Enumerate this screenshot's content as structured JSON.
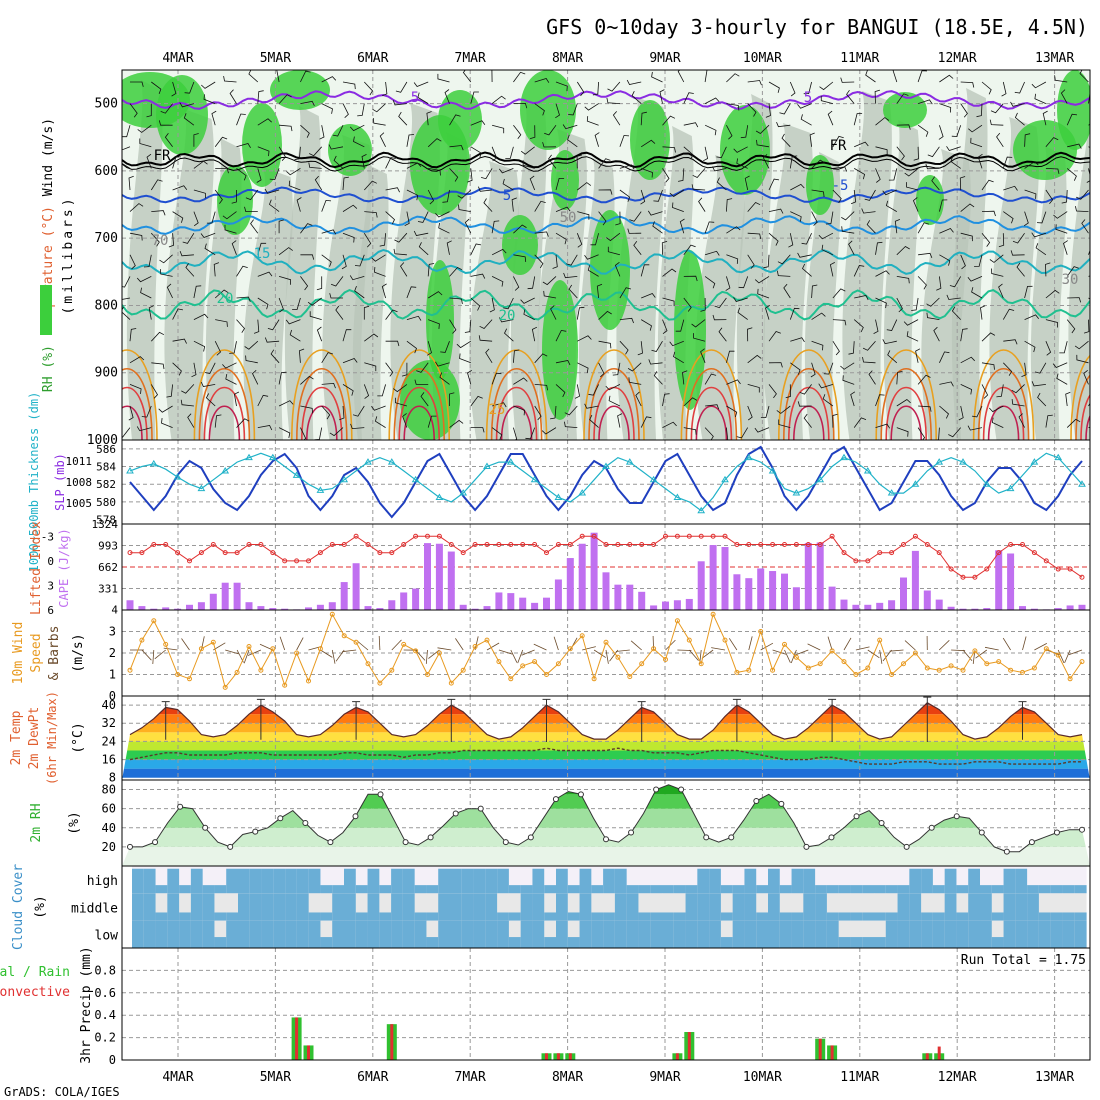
{
  "title": "GFS 0~10day 3-hourly for BANGUI (18.5E, 4.5N)",
  "credit": "GrADS: COLA/IGES",
  "colors": {
    "rh_green": "#3ccf3c",
    "gray_shade": "#b8c4b8",
    "light_shade": "#e8f2e8",
    "freezing": "#000000",
    "purple": "#8a2be2",
    "slp_line": "#1f3fbf",
    "thickness_line": "#20b2c8",
    "lifted_index": "#e03030",
    "cape_bar": "#c070f0",
    "wind_speed": "#e89a20",
    "barbs": "#6a4a2a",
    "rh2m": "#30b030",
    "cloud": "#6aaed6",
    "cloud_clear": "#e8e8e8",
    "precip_total": "#30c030",
    "precip_conv": "#e03030"
  },
  "chart_data": [
    {
      "type": "heatmap",
      "panel": "upper-air",
      "ylabel_parts": [
        "RH (%)",
        "Temperature (°C)",
        "Wind (m/s)"
      ],
      "ylabel_units": "(millibars)",
      "y_ticks": [
        "500",
        "600",
        "700",
        "800",
        "900",
        "1000"
      ],
      "ylim": [
        450,
        1000
      ],
      "x_dates": [
        "4MAR",
        "5MAR",
        "6MAR",
        "7MAR",
        "8MAR",
        "9MAR",
        "10MAR",
        "11MAR",
        "12MAR",
        "13MAR"
      ],
      "contour_labels": [
        "5",
        "FR",
        "5",
        "15",
        "20",
        "20",
        "25",
        "5",
        "50",
        "30",
        "70",
        "-5",
        "FR"
      ]
    },
    {
      "type": "line",
      "panel": "slp-thickness",
      "ylabel_left": "1000~500mb Thickness (dm)",
      "ylabel_right": "SLP (mb)",
      "left_ticks": [
        "586",
        "584",
        "582",
        "580",
        "578"
      ],
      "right_ticks": [
        "1011",
        "1008",
        "1005"
      ],
      "series": [
        {
          "name": "SLP (mb)",
          "values": [
            1008,
            1006,
            1004,
            1006,
            1009,
            1011,
            1010,
            1007,
            1005,
            1004,
            1006,
            1009,
            1011,
            1012,
            1010,
            1006,
            1004,
            1006,
            1009,
            1010,
            1008,
            1005,
            1003,
            1005,
            1008,
            1011,
            1012,
            1009,
            1006,
            1004,
            1006,
            1009,
            1012,
            1012,
            1009,
            1006,
            1004,
            1006,
            1009,
            1011,
            1010,
            1007,
            1005,
            1005,
            1008,
            1011,
            1012,
            1009,
            1006,
            1004,
            1005,
            1009,
            1012,
            1013,
            1010,
            1006,
            1004,
            1006,
            1009,
            1012,
            1013,
            1010,
            1007,
            1004,
            1005,
            1008,
            1011,
            1011,
            1009,
            1006,
            1004,
            1005,
            1008,
            1010,
            1010,
            1008,
            1005,
            1004,
            1006,
            1009,
            1011
          ]
        },
        {
          "name": "Thickness (dm)",
          "values": [
            583.5,
            584,
            584.3,
            583.7,
            582.8,
            582,
            581.5,
            582.5,
            583.5,
            584.5,
            585,
            585.5,
            585,
            584,
            583,
            582,
            581.3,
            581.5,
            582.5,
            583.5,
            584.5,
            585,
            584.5,
            583.5,
            582.5,
            581.5,
            580.5,
            580,
            581,
            582.5,
            584,
            584.5,
            584.5,
            583.5,
            582.5,
            581.5,
            580.5,
            580,
            581,
            582.5,
            584,
            585,
            584.5,
            583.5,
            582.5,
            581.5,
            580.5,
            580,
            579,
            580.5,
            582.5,
            584,
            585,
            584.5,
            583.5,
            581.5,
            581,
            581.5,
            582.5,
            584,
            585,
            584.5,
            583.5,
            582,
            581,
            581,
            582,
            583.5,
            584.5,
            585,
            584.5,
            583.5,
            582,
            581,
            581.5,
            583,
            584.5,
            585.5,
            585,
            583.5,
            582
          ]
        }
      ]
    },
    {
      "type": "bar",
      "panel": "cape-lifted-index",
      "ylabel_left": "Lifted Index",
      "ylabel_right": "CAPE (J/kg)",
      "left_ticks": [
        "-3",
        "0",
        "3",
        "6"
      ],
      "right_ticks": [
        "1324",
        "993",
        "662",
        "331",
        "4"
      ],
      "series": [
        {
          "name": "CAPE (J/kg)",
          "values": [
            150,
            60,
            20,
            40,
            20,
            80,
            120,
            250,
            420,
            420,
            120,
            60,
            30,
            20,
            10,
            40,
            80,
            120,
            430,
            720,
            60,
            30,
            150,
            270,
            330,
            1030,
            1020,
            900,
            80,
            20,
            60,
            270,
            260,
            190,
            110,
            190,
            470,
            800,
            1020,
            1190,
            580,
            390,
            390,
            280,
            70,
            130,
            150,
            170,
            750,
            1000,
            970,
            550,
            490,
            640,
            600,
            560,
            350,
            1030,
            1040,
            360,
            160,
            80,
            80,
            110,
            150,
            500,
            910,
            300,
            160,
            50,
            20,
            20,
            30,
            920,
            870,
            60,
            20,
            10,
            30,
            70,
            80
          ]
        },
        {
          "name": "Lifted Index",
          "values": [
            -1,
            -1,
            -2,
            -2,
            -1,
            0,
            -1,
            -2,
            -1,
            -1,
            -2,
            -2,
            -1,
            0,
            0,
            0,
            -1,
            -2,
            -2,
            -3,
            -2,
            -1,
            -1,
            -2,
            -3,
            -3,
            -3,
            -2,
            -1,
            -2,
            -2,
            -2,
            -2,
            -2,
            -2,
            -1,
            -2,
            -2,
            -3,
            -3,
            -2,
            -2,
            -2,
            -2,
            -2,
            -3,
            -3,
            -3,
            -3,
            -3,
            -3,
            -2,
            -2,
            -2,
            -2,
            -2,
            -2,
            -2,
            -2,
            -3,
            -1,
            0,
            0,
            -1,
            -1,
            -2,
            -3,
            -2,
            -1,
            1,
            2,
            2,
            1,
            -1,
            -2,
            -2,
            -1,
            0,
            1,
            1,
            2,
            3,
            2,
            1,
            1,
            0,
            0,
            -1,
            -1
          ]
        }
      ]
    },
    {
      "type": "line",
      "panel": "10m-wind",
      "ylabel_lines": [
        "10m Wind",
        "Speed",
        "& Barbs"
      ],
      "ylabel_units": "(m/s)",
      "y_ticks": [
        "3",
        "2",
        "1",
        "0"
      ],
      "ylim": [
        0,
        4
      ],
      "series": [
        {
          "name": "10m Wind Speed (m/s)",
          "values": [
            1.2,
            2.6,
            3.5,
            2.4,
            1.0,
            0.8,
            2.2,
            2.5,
            0.4,
            1.1,
            2.3,
            1.2,
            2.2,
            0.5,
            2.0,
            0.7,
            2.2,
            3.8,
            2.8,
            2.5,
            1.5,
            0.6,
            1.2,
            2.4,
            2.1,
            1.0,
            2.0,
            0.6,
            1.2,
            2.3,
            2.6,
            1.6,
            0.8,
            1.4,
            1.6,
            1.0,
            1.5,
            2.2,
            2.8,
            0.8,
            2.5,
            1.8,
            0.9,
            1.5,
            2.2,
            1.7,
            3.5,
            2.6,
            1.5,
            3.8,
            2.6,
            1.1,
            1.2,
            3.0,
            1.2,
            2.4,
            1.8,
            1.3,
            1.5,
            2.1,
            1.6,
            1.0,
            1.3,
            2.6,
            1.0,
            1.5,
            2.0,
            1.3,
            1.2,
            1.4,
            1.2,
            2.1,
            1.5,
            1.6,
            1.2,
            1.1,
            1.3,
            2.2,
            1.9,
            0.8,
            1.6,
            1.3,
            2.3,
            1.3,
            0.5,
            1.8,
            1.5,
            1.9,
            2.6
          ]
        }
      ]
    },
    {
      "type": "area",
      "panel": "2m-temp",
      "ylabel_lines": [
        "2m Temp",
        "2m DewPt",
        "(6hr Min/Max)"
      ],
      "ylabel_units": "(°C)",
      "y_ticks": [
        "40",
        "32",
        "24",
        "16",
        "8"
      ],
      "ylim": [
        8,
        44
      ],
      "series": [
        {
          "name": "2m Temp",
          "values": [
            27,
            30,
            34,
            39,
            38,
            33,
            27,
            26,
            27,
            31,
            36,
            40,
            37,
            33,
            27,
            26,
            27,
            31,
            36,
            39,
            37,
            32,
            27,
            26,
            27,
            31,
            36,
            40,
            37,
            32,
            27,
            25,
            26,
            30,
            35,
            40,
            37,
            32,
            27,
            25,
            25,
            29,
            34,
            39,
            37,
            32,
            27,
            25,
            25,
            29,
            35,
            40,
            37,
            32,
            27,
            25,
            26,
            30,
            35,
            40,
            37,
            32,
            27,
            25,
            26,
            31,
            36,
            41,
            38,
            33,
            27,
            25,
            26,
            30,
            35,
            39,
            37,
            32,
            27,
            26,
            27,
            31,
            36,
            41,
            39,
            33,
            27
          ]
        },
        {
          "name": "2m DewPt",
          "values": [
            16,
            17,
            18,
            19,
            19,
            18,
            18,
            18,
            18,
            19,
            19,
            19,
            18,
            18,
            18,
            18,
            18,
            18,
            19,
            19,
            18,
            18,
            18,
            17,
            18,
            18,
            19,
            19,
            20,
            20,
            20,
            20,
            20,
            20,
            20,
            21,
            20,
            20,
            20,
            20,
            20,
            21,
            20,
            20,
            19,
            19,
            19,
            18,
            19,
            20,
            20,
            20,
            19,
            18,
            17,
            16,
            16,
            16,
            17,
            17,
            16,
            15,
            14,
            14,
            14,
            15,
            15,
            15,
            14,
            14,
            14,
            15,
            15,
            15,
            14,
            14,
            14,
            14,
            14,
            15,
            15,
            15,
            14,
            14,
            13,
            13,
            14,
            15,
            15,
            15
          ]
        }
      ]
    },
    {
      "type": "area",
      "panel": "2m-rh",
      "ylabel": "2m RH",
      "ylabel_units": "(%)",
      "y_ticks": [
        "80",
        "60",
        "40",
        "20"
      ],
      "ylim": [
        0,
        90
      ],
      "series": [
        {
          "name": "2m RH (%)",
          "values": [
            20,
            20,
            25,
            45,
            62,
            60,
            40,
            25,
            20,
            33,
            36,
            40,
            50,
            58,
            45,
            32,
            25,
            35,
            52,
            75,
            75,
            50,
            25,
            22,
            30,
            42,
            55,
            60,
            60,
            40,
            25,
            22,
            30,
            50,
            70,
            78,
            75,
            50,
            28,
            25,
            35,
            55,
            80,
            85,
            80,
            55,
            30,
            25,
            30,
            48,
            68,
            75,
            65,
            45,
            20,
            22,
            30,
            40,
            52,
            58,
            45,
            30,
            20,
            28,
            40,
            48,
            52,
            50,
            35,
            20,
            15,
            15,
            25,
            30,
            35,
            38,
            38
          ]
        }
      ]
    },
    {
      "type": "heatmap",
      "panel": "cloud-cover",
      "ylabel": "Cloud Cover",
      "ylabel_units": "(%)",
      "row_labels": [
        "high",
        "middle",
        "low"
      ]
    },
    {
      "type": "bar",
      "panel": "precip",
      "ylabel_left": "Total / Rain",
      "ylabel_left2": "Convective",
      "ylabel_units": "3hr Precip (mm)",
      "run_total": "Run Total = 1.75",
      "y_ticks": [
        "0.8",
        "0.6",
        "0.4",
        "0.2",
        "0"
      ],
      "ylim": [
        0,
        1.0
      ],
      "bars": [
        {
          "x": 14,
          "total": 0.38,
          "conv": 0.38
        },
        {
          "x": 15,
          "total": 0.13,
          "conv": 0.13
        },
        {
          "x": 22,
          "total": 0.32,
          "conv": 0.32
        },
        {
          "x": 35,
          "total": 0.06,
          "conv": 0.06
        },
        {
          "x": 36,
          "total": 0.06,
          "conv": 0.06
        },
        {
          "x": 37,
          "total": 0.06,
          "conv": 0.06
        },
        {
          "x": 46,
          "total": 0.06,
          "conv": 0.06
        },
        {
          "x": 47,
          "total": 0.25,
          "conv": 0.25
        },
        {
          "x": 58,
          "total": 0.19,
          "conv": 0.19
        },
        {
          "x": 59,
          "total": 0.13,
          "conv": 0.13
        },
        {
          "x": 67,
          "total": 0.06,
          "conv": 0.06
        },
        {
          "x": 68,
          "total": 0.06,
          "conv": 0.12
        }
      ]
    }
  ]
}
